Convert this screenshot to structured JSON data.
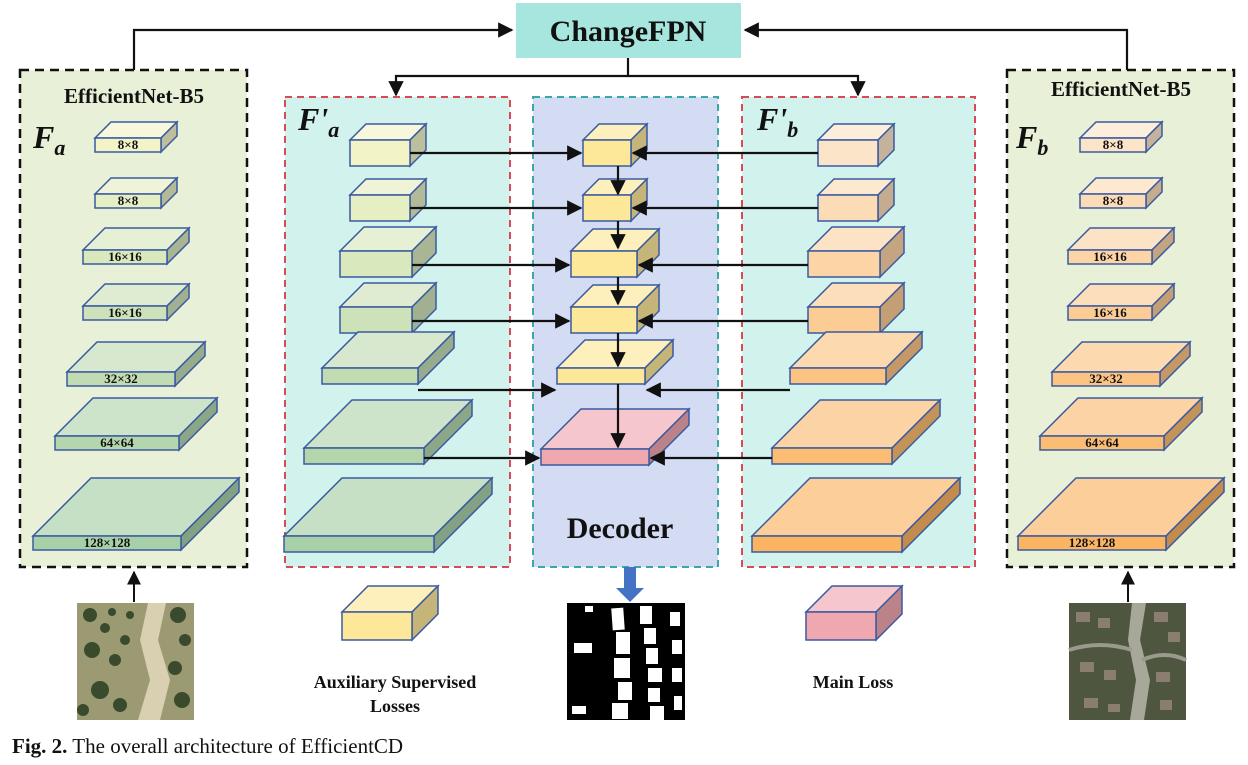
{
  "title": "ChangeFPN",
  "backbone_left": {
    "heading": "EfficientNet-B5",
    "feature_symbol": "F",
    "feature_sub": "a",
    "levels": [
      "8×8",
      "8×8",
      "16×16",
      "16×16",
      "32×32",
      "64×64",
      "128×128"
    ]
  },
  "backbone_right": {
    "heading": "EfficientNet-B5",
    "feature_symbol": "F",
    "feature_sub": "b",
    "levels": [
      "8×8",
      "8×8",
      "16×16",
      "16×16",
      "32×32",
      "64×64",
      "128×128"
    ]
  },
  "fpn_left_label": {
    "symbol": "F'",
    "sub": "a"
  },
  "fpn_right_label": {
    "symbol": "F'",
    "sub": "b"
  },
  "decoder_label": "Decoder",
  "legend": {
    "aux_line1": "Auxiliary Supervised",
    "aux_line2": "Losses",
    "main": "Main Loss"
  },
  "caption": {
    "prefix": "Fig. 2.",
    "text": "The overall architecture of EfficientCD"
  },
  "colors": {
    "backbone_bg": "#e8f0d8",
    "fpn_bg": "#d2f2ee",
    "decoder_bg": "#d4dcf4",
    "title_bg": "#a6e6de",
    "decoder_block": "#fde89a",
    "main_block": "#f0a8b0",
    "left_bottom": "#a8d0a8",
    "right_bottom": "#fbb462",
    "edge": "#3a5aa0"
  }
}
